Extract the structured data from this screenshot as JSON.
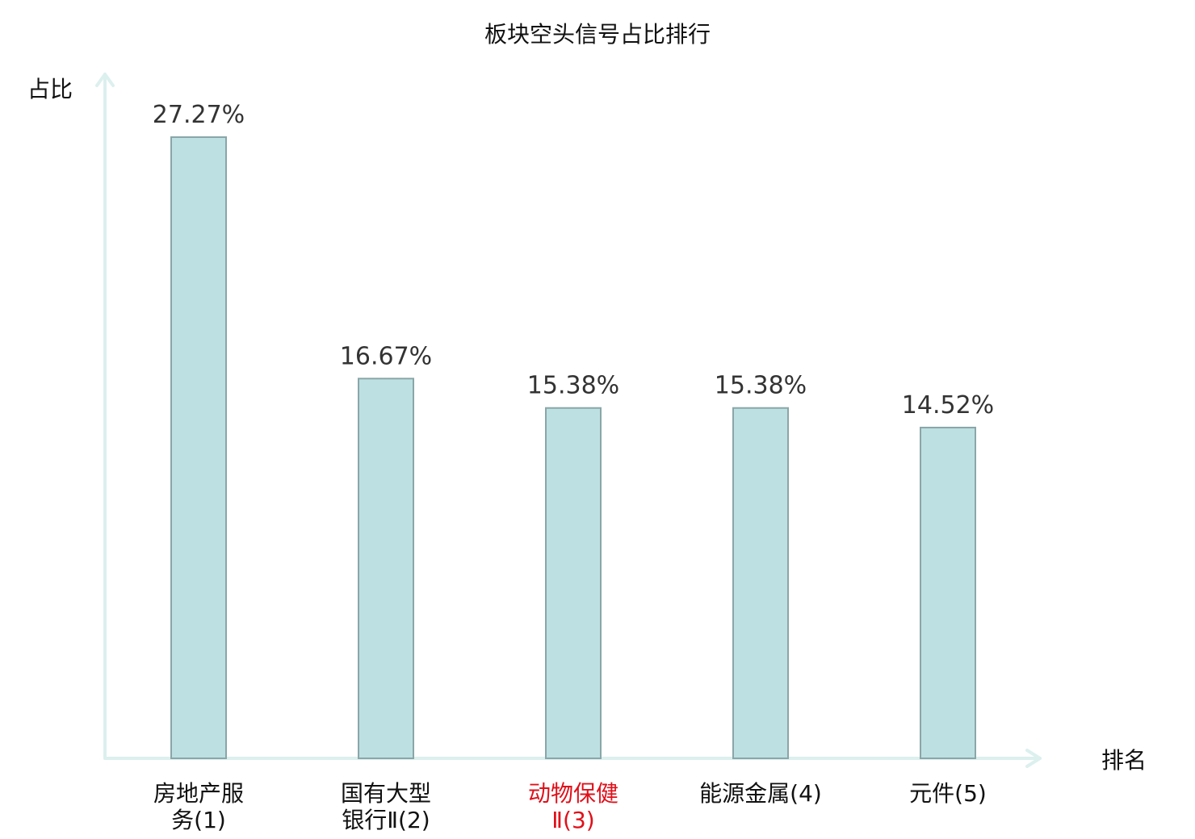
{
  "chart_data": {
    "type": "bar",
    "title": "板块空头信号占比排行",
    "xlabel": "排名",
    "ylabel": "占比",
    "ylim": [
      0,
      30
    ],
    "grid": false,
    "categories": [
      [
        "房地产服",
        "务(1)"
      ],
      [
        "国有大型",
        "银行Ⅱ(2)"
      ],
      [
        "动物保健",
        "Ⅱ(3)"
      ],
      [
        "能源金属(4)"
      ],
      [
        "元件(5)"
      ]
    ],
    "values": [
      27.27,
      16.67,
      15.38,
      15.38,
      14.52
    ],
    "value_labels": [
      "27.27%",
      "16.67%",
      "15.38%",
      "15.38%",
      "14.52%"
    ],
    "highlight_index": 2,
    "colors": {
      "bar_fill": "#bde0e2",
      "bar_stroke": "#8aa6a8",
      "axis": "#dcf0ee",
      "label_normal": "#111111",
      "label_highlight": "#e0101a"
    }
  }
}
